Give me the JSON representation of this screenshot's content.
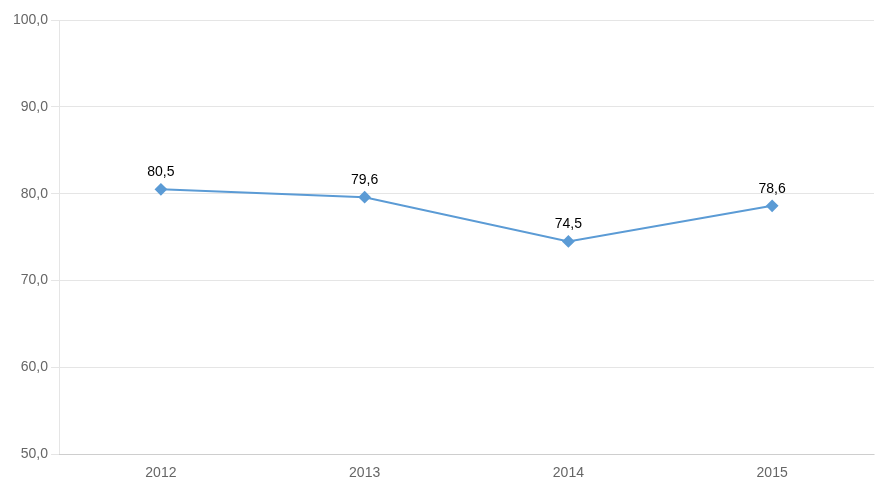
{
  "chart_data": {
    "type": "line",
    "x": [
      2012,
      2013,
      2014,
      2015
    ],
    "values": [
      80.5,
      79.6,
      74.5,
      78.6
    ],
    "value_labels": [
      "80,5",
      "79,6",
      "74,5",
      "78,6"
    ],
    "data_labels": true,
    "color": "#5B9BD5",
    "marker": "diamond",
    "xlim": [
      2011.5,
      2015.5
    ],
    "xticks": [
      2012,
      2013,
      2014,
      2015
    ],
    "ylim": [
      50,
      100
    ],
    "yticks": [
      {
        "value": 50,
        "label": "50,0"
      },
      {
        "value": 60,
        "label": "60,0"
      },
      {
        "value": 70,
        "label": "70,0"
      },
      {
        "value": 80,
        "label": "80,0"
      },
      {
        "value": 90,
        "label": "90,0"
      },
      {
        "value": 100,
        "label": "100,0"
      }
    ],
    "grid": "y"
  }
}
